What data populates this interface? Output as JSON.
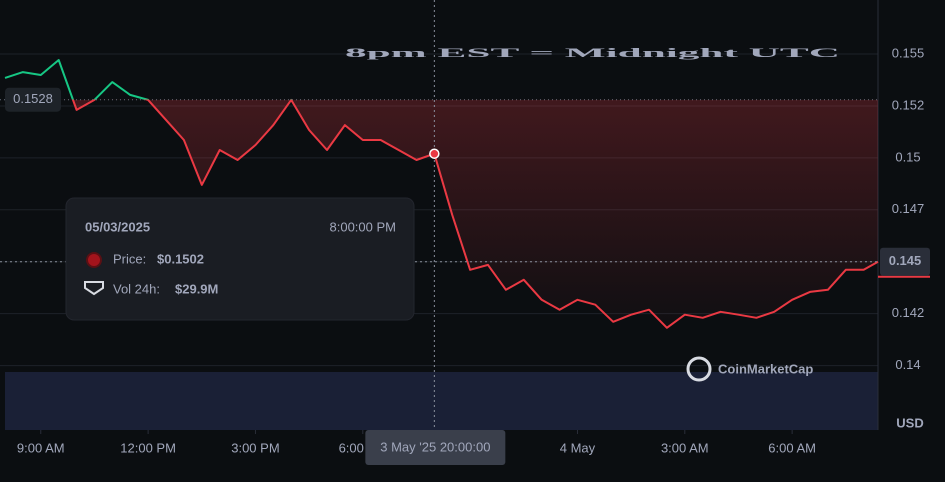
{
  "chart_data": {
    "type": "line",
    "title": "8pm EST = Midnight UTC",
    "x": [
      "2025-05-03T08:00",
      "2025-05-03T08:30",
      "2025-05-03T09:00",
      "2025-05-03T09:30",
      "2025-05-03T10:00",
      "2025-05-03T10:30",
      "2025-05-03T11:00",
      "2025-05-03T11:30",
      "2025-05-03T12:00",
      "2025-05-03T12:30",
      "2025-05-03T13:00",
      "2025-05-03T13:30",
      "2025-05-03T14:00",
      "2025-05-03T14:30",
      "2025-05-03T15:00",
      "2025-05-03T15:30",
      "2025-05-03T16:00",
      "2025-05-03T16:30",
      "2025-05-03T17:00",
      "2025-05-03T17:30",
      "2025-05-03T18:00",
      "2025-05-03T18:30",
      "2025-05-03T19:00",
      "2025-05-03T19:30",
      "2025-05-03T20:00",
      "2025-05-03T20:30",
      "2025-05-03T21:00",
      "2025-05-03T21:30",
      "2025-05-03T22:00",
      "2025-05-03T22:30",
      "2025-05-03T23:00",
      "2025-05-03T23:30",
      "2025-05-04T00:00",
      "2025-05-04T00:30",
      "2025-05-04T01:00",
      "2025-05-04T01:30",
      "2025-05-04T02:00",
      "2025-05-04T02:30",
      "2025-05-04T03:00",
      "2025-05-04T03:30",
      "2025-05-04T04:00",
      "2025-05-04T04:30",
      "2025-05-04T05:00",
      "2025-05-04T05:30",
      "2025-05-04T06:00",
      "2025-05-04T06:30",
      "2025-05-04T07:00",
      "2025-05-04T07:30",
      "2025-05-04T08:00",
      "2025-05-04T08:24"
    ],
    "values": [
      0.15385,
      0.15413,
      0.15399,
      0.15471,
      0.15231,
      0.15279,
      0.15365,
      0.15303,
      0.15279,
      0.15183,
      0.15086,
      0.1487,
      0.15038,
      0.1499,
      0.15062,
      0.15158,
      0.15279,
      0.15134,
      0.15038,
      0.15158,
      0.15086,
      0.15086,
      0.15038,
      0.1499,
      0.1502,
      0.14726,
      0.14461,
      0.14485,
      0.14365,
      0.14413,
      0.14317,
      0.14269,
      0.14317,
      0.14293,
      0.14211,
      0.14245,
      0.14269,
      0.14182,
      0.14245,
      0.1423,
      0.14259,
      0.14245,
      0.1423,
      0.14259,
      0.14317,
      0.14355,
      0.14365,
      0.14461,
      0.14461,
      0.145
    ],
    "colors": {
      "up": "#16c784",
      "down": "#ea3943"
    },
    "baseline": 0.1528,
    "xlim": [
      "2025-05-03T08:00",
      "2025-05-04T08:24"
    ],
    "xticks": [
      {
        "value": "2025-05-03T09:00",
        "label": "9:00 AM"
      },
      {
        "value": "2025-05-03T12:00",
        "label": "12:00 PM"
      },
      {
        "value": "2025-05-03T15:00",
        "label": "3:00 PM"
      },
      {
        "value": "2025-05-03T18:00",
        "label": "6:00 PM"
      },
      {
        "value": "2025-05-04T00:00",
        "label": "4 May"
      },
      {
        "value": "2025-05-04T03:00",
        "label": "3:00 AM"
      },
      {
        "value": "2025-05-04T06:00",
        "label": "6:00 AM"
      }
    ],
    "ylim": [
      0.1369,
      0.1576
    ],
    "yticks": [
      0.14,
      {
        "value": 0.1425,
        "label": "0.142"
      },
      0.145,
      {
        "value": 0.1475,
        "label": "0.147"
      },
      0.15,
      {
        "value": 0.1525,
        "label": "0.152"
      },
      0.155
    ],
    "y_unit": "USD",
    "grid": true,
    "crosshair": {
      "x": "2025-05-03T20:00",
      "x_label": "3 May '25 20:00:00",
      "y": 0.145
    },
    "tooltip": {
      "date": "05/03/2025",
      "time": "8:00:00 PM",
      "price_label": "Price:",
      "price": "$0.1502",
      "vol_label": "Vol 24h:",
      "vol": "$29.9M"
    },
    "watermark": "CoinMarketCap"
  }
}
